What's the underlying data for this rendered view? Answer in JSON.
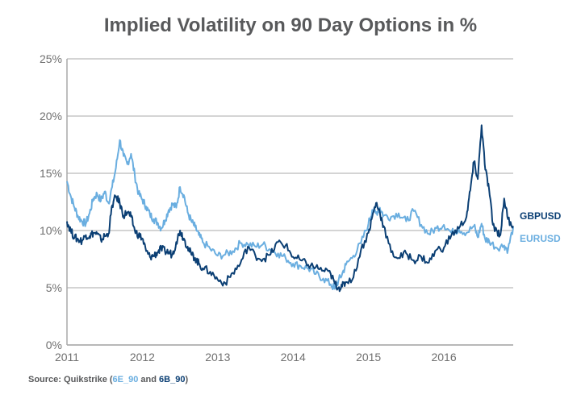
{
  "chart_data": {
    "type": "line",
    "title": "Implied Volatility on 90 Day Options in %",
    "xlabel": "",
    "ylabel": "",
    "xlim": [
      2011,
      2016.92
    ],
    "ylim": [
      0,
      25
    ],
    "yticks": [
      0,
      5,
      10,
      15,
      20,
      25
    ],
    "ytick_labels": [
      "0%",
      "5%",
      "10%",
      "15%",
      "20%",
      "25%"
    ],
    "xticks": [
      2011,
      2012,
      2013,
      2014,
      2015,
      2016
    ],
    "xtick_labels": [
      "2011",
      "2012",
      "2013",
      "2014",
      "2015",
      "2016"
    ],
    "grid": "horizontal",
    "legend": "right-end-labels",
    "series": [
      {
        "name": "EURUSD",
        "color": "#6aaee0",
        "x": [
          2011.0,
          2011.05,
          2011.1,
          2011.15,
          2011.2,
          2011.25,
          2011.3,
          2011.35,
          2011.4,
          2011.45,
          2011.5,
          2011.55,
          2011.6,
          2011.65,
          2011.7,
          2011.75,
          2011.8,
          2011.85,
          2011.9,
          2011.95,
          2012.0,
          2012.05,
          2012.1,
          2012.15,
          2012.2,
          2012.25,
          2012.3,
          2012.35,
          2012.4,
          2012.45,
          2012.5,
          2012.55,
          2012.6,
          2012.65,
          2012.7,
          2012.75,
          2012.8,
          2012.9,
          2013.0,
          2013.1,
          2013.2,
          2013.3,
          2013.4,
          2013.5,
          2013.6,
          2013.7,
          2013.8,
          2013.9,
          2014.0,
          2014.1,
          2014.2,
          2014.3,
          2014.4,
          2014.5,
          2014.55,
          2014.6,
          2014.65,
          2014.7,
          2014.8,
          2014.9,
          2015.0,
          2015.05,
          2015.1,
          2015.15,
          2015.2,
          2015.3,
          2015.4,
          2015.5,
          2015.6,
          2015.7,
          2015.8,
          2015.9,
          2016.0,
          2016.1,
          2016.2,
          2016.3,
          2016.4,
          2016.45,
          2016.5,
          2016.55,
          2016.6,
          2016.7,
          2016.8,
          2016.85,
          2016.92
        ],
        "values": [
          14.3,
          13.0,
          12.0,
          11.2,
          10.8,
          10.6,
          11.5,
          12.8,
          13.2,
          12.6,
          13.4,
          12.4,
          13.8,
          15.5,
          17.9,
          16.5,
          15.8,
          16.7,
          14.8,
          13.2,
          12.7,
          12.1,
          11.4,
          11.0,
          10.7,
          10.2,
          10.9,
          11.8,
          12.3,
          12.0,
          13.8,
          13.1,
          11.6,
          10.8,
          10.3,
          9.6,
          9.0,
          8.4,
          7.8,
          7.9,
          8.2,
          8.9,
          8.8,
          8.6,
          8.8,
          8.3,
          8.0,
          7.6,
          7.1,
          6.9,
          6.7,
          6.2,
          5.8,
          5.3,
          4.9,
          5.6,
          6.2,
          7.0,
          7.8,
          8.9,
          10.6,
          11.8,
          11.5,
          12.0,
          11.3,
          11.2,
          11.5,
          10.8,
          11.7,
          10.5,
          9.7,
          10.2,
          10.5,
          9.8,
          10.1,
          9.8,
          10.4,
          9.4,
          10.6,
          9.2,
          9.1,
          8.5,
          8.7,
          8.3,
          10.3
        ]
      },
      {
        "name": "GBPUSD",
        "color": "#0b3f74",
        "x": [
          2011.0,
          2011.05,
          2011.1,
          2011.15,
          2011.2,
          2011.25,
          2011.3,
          2011.35,
          2011.4,
          2011.45,
          2011.5,
          2011.55,
          2011.6,
          2011.65,
          2011.7,
          2011.75,
          2011.8,
          2011.85,
          2011.9,
          2011.95,
          2012.0,
          2012.05,
          2012.1,
          2012.15,
          2012.2,
          2012.25,
          2012.3,
          2012.35,
          2012.4,
          2012.45,
          2012.5,
          2012.55,
          2012.6,
          2012.65,
          2012.7,
          2012.75,
          2012.8,
          2012.9,
          2013.0,
          2013.1,
          2013.2,
          2013.3,
          2013.4,
          2013.5,
          2013.6,
          2013.7,
          2013.8,
          2013.9,
          2014.0,
          2014.1,
          2014.2,
          2014.3,
          2014.4,
          2014.5,
          2014.55,
          2014.6,
          2014.65,
          2014.7,
          2014.8,
          2014.9,
          2015.0,
          2015.05,
          2015.1,
          2015.15,
          2015.2,
          2015.3,
          2015.4,
          2015.5,
          2015.6,
          2015.7,
          2015.8,
          2015.9,
          2016.0,
          2016.1,
          2016.2,
          2016.3,
          2016.35,
          2016.4,
          2016.45,
          2016.5,
          2016.55,
          2016.6,
          2016.65,
          2016.7,
          2016.75,
          2016.8,
          2016.85,
          2016.92
        ],
        "values": [
          10.8,
          10.0,
          9.4,
          9.2,
          9.1,
          9.6,
          9.5,
          9.8,
          9.7,
          9.2,
          9.5,
          9.7,
          12.2,
          13.0,
          12.4,
          11.3,
          11.6,
          11.2,
          10.0,
          9.6,
          9.3,
          8.2,
          7.7,
          7.8,
          8.1,
          8.4,
          8.2,
          8.1,
          7.9,
          9.0,
          10.0,
          9.3,
          8.6,
          7.9,
          7.6,
          7.1,
          6.7,
          6.4,
          5.7,
          5.4,
          6.3,
          7.1,
          8.6,
          7.8,
          7.5,
          7.9,
          9.0,
          8.7,
          7.7,
          7.4,
          7.0,
          6.8,
          6.5,
          6.2,
          5.4,
          5.0,
          5.1,
          5.5,
          5.9,
          8.3,
          9.8,
          11.2,
          12.4,
          11.6,
          10.4,
          8.1,
          7.6,
          8.0,
          7.4,
          7.7,
          7.2,
          8.3,
          8.5,
          9.6,
          10.2,
          11.2,
          13.5,
          16.0,
          14.5,
          19.2,
          15.3,
          13.6,
          10.5,
          10.0,
          9.6,
          12.8,
          11.0,
          10.4
        ]
      }
    ]
  },
  "source": {
    "prefix": "Source: Quikstrike (",
    "eur_code": "6E_90",
    "middle": " and ",
    "gbp_code": "6B_90",
    "suffix": ")"
  }
}
